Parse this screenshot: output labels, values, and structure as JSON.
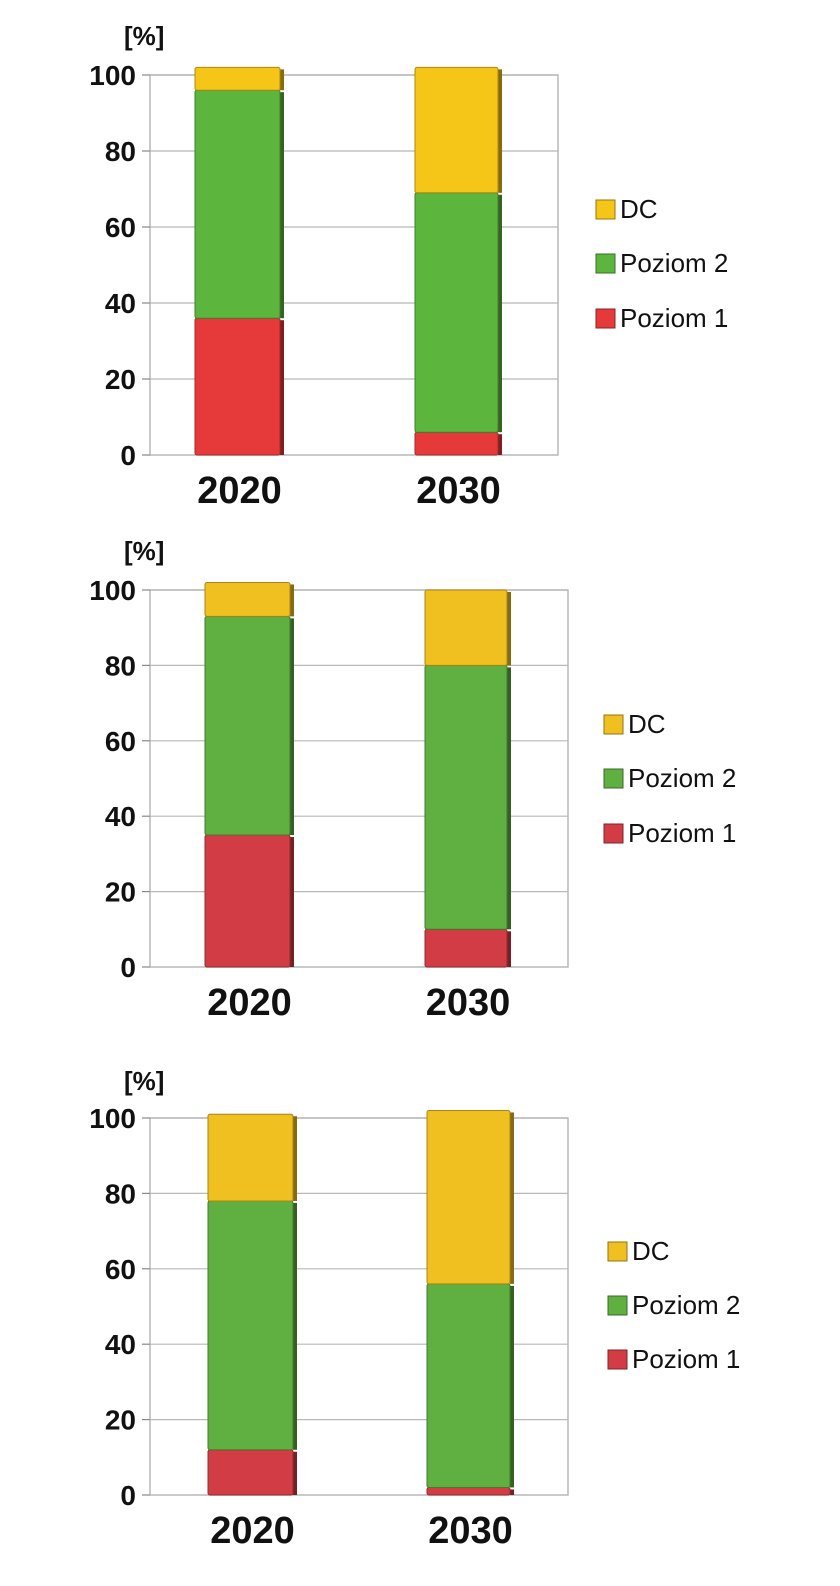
{
  "chart_data": [
    {
      "type": "bar",
      "stacked": true,
      "unit_label": "[%]",
      "categories": [
        "2020",
        "2030"
      ],
      "ylim": [
        0,
        100
      ],
      "yticks": [
        "0",
        "20",
        "40",
        "60",
        "80",
        "100"
      ],
      "grid": true,
      "legend_position": "right",
      "series": [
        {
          "name": "Poziom 1",
          "color": "#e63a3a",
          "values": [
            36,
            6
          ]
        },
        {
          "name": "Poziom 2",
          "color": "#5cb63e",
          "values": [
            60,
            63
          ]
        },
        {
          "name": "DC",
          "color": "#f5c518",
          "values": [
            6,
            33
          ]
        }
      ],
      "legend_order": [
        "DC",
        "Poziom 2",
        "Poziom 1"
      ]
    },
    {
      "type": "bar",
      "stacked": true,
      "unit_label": "[%]",
      "categories": [
        "2020",
        "2030"
      ],
      "ylim": [
        0,
        100
      ],
      "yticks": [
        "0",
        "20",
        "40",
        "60",
        "80",
        "100"
      ],
      "grid": true,
      "legend_position": "right",
      "series": [
        {
          "name": "Poziom 1",
          "color": "#d23c44",
          "values": [
            35,
            10
          ]
        },
        {
          "name": "Poziom 2",
          "color": "#5fb040",
          "values": [
            58,
            70
          ]
        },
        {
          "name": "DC",
          "color": "#f0c020",
          "values": [
            9,
            20
          ]
        }
      ],
      "legend_order": [
        "DC",
        "Poziom 2",
        "Poziom 1"
      ]
    },
    {
      "type": "bar",
      "stacked": true,
      "unit_label": "[%]",
      "categories": [
        "2020",
        "2030"
      ],
      "ylim": [
        0,
        100
      ],
      "yticks": [
        "0",
        "20",
        "40",
        "60",
        "80",
        "100"
      ],
      "grid": true,
      "legend_position": "right",
      "series": [
        {
          "name": "Poziom 1",
          "color": "#d23c44",
          "values": [
            12,
            2
          ]
        },
        {
          "name": "Poziom 2",
          "color": "#5fb040",
          "values": [
            66,
            54
          ]
        },
        {
          "name": "DC",
          "color": "#f0c020",
          "values": [
            23,
            46
          ]
        }
      ],
      "legend_order": [
        "DC",
        "Poziom 2",
        "Poziom 1"
      ]
    }
  ]
}
